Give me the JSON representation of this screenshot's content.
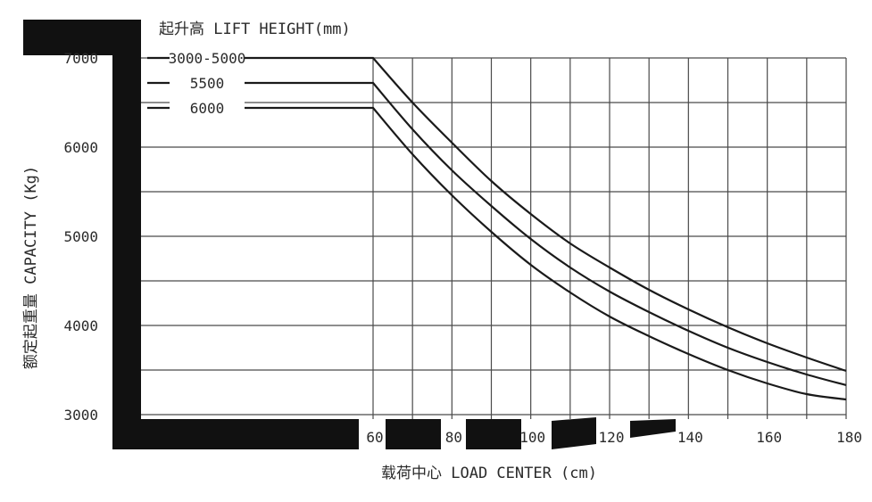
{
  "chart_data": {
    "type": "line",
    "title": "起升高 LIFT HEIGHT(mm)",
    "xlabel": "载荷中心 LOAD CENTER (cm)",
    "ylabel": "额定起重量 CAPACITY (Kg)",
    "xlim": [
      50,
      180
    ],
    "ylim": [
      3000,
      7000
    ],
    "x_ticks": [
      60,
      80,
      100,
      120,
      140,
      160,
      180
    ],
    "y_ticks": [
      3000,
      4000,
      5000,
      6000,
      7000
    ],
    "grid": true,
    "series": [
      {
        "name": "3000-5000",
        "x": [
          50,
          60,
          70,
          80,
          90,
          100,
          110,
          120,
          130,
          140,
          150,
          160,
          170,
          180
        ],
        "values": [
          7000,
          7000,
          6500,
          6050,
          5620,
          5250,
          4920,
          4650,
          4400,
          4180,
          3980,
          3800,
          3640,
          3490
        ]
      },
      {
        "name": "5500",
        "x": [
          50,
          60,
          70,
          80,
          90,
          100,
          110,
          120,
          130,
          140,
          150,
          160,
          170,
          180
        ],
        "values": [
          6720,
          6720,
          6200,
          5740,
          5340,
          4970,
          4650,
          4380,
          4150,
          3940,
          3750,
          3590,
          3450,
          3330
        ]
      },
      {
        "name": "6000",
        "x": [
          50,
          60,
          70,
          80,
          90,
          100,
          110,
          120,
          130,
          140,
          150,
          160,
          170,
          180
        ],
        "values": [
          6440,
          6440,
          5920,
          5460,
          5050,
          4680,
          4370,
          4100,
          3880,
          3680,
          3500,
          3350,
          3230,
          3170
        ]
      }
    ]
  }
}
